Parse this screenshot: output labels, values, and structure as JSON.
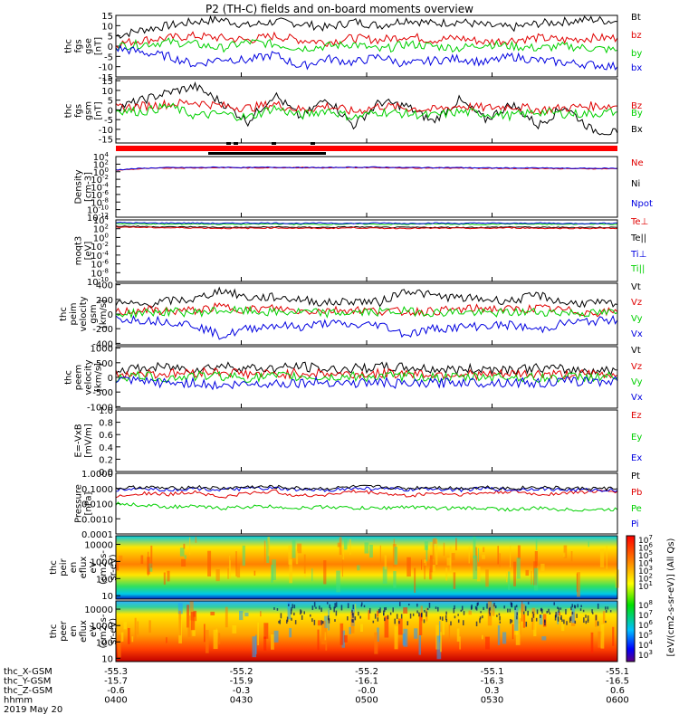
{
  "title": "P2 (TH-C) fields and on-board moments overview",
  "footer_date": "2019 May 20",
  "colors": {
    "black": "#000000",
    "red": "#e00000",
    "green": "#00d000",
    "blue": "#0000e0"
  },
  "chart_data": [
    {
      "type": "line",
      "id": "fgs-gse",
      "ylabel": [
        "thc",
        "fgs",
        "gse",
        "[nT]"
      ],
      "ylim": [
        -15,
        15
      ],
      "yticks": [
        "15",
        "10",
        "5",
        "0",
        "-5",
        "-10",
        "-15"
      ],
      "ytick_values": [
        15,
        10,
        5,
        0,
        -5,
        -10,
        -15
      ],
      "legend": [
        {
          "name": "Bt",
          "color": "black"
        },
        {
          "name": "bz",
          "color": "red"
        },
        {
          "name": "by",
          "color": "green"
        },
        {
          "name": "bx",
          "color": "blue"
        }
      ],
      "series": [
        {
          "name": "Bt",
          "color": "black",
          "values": [
            5,
            8,
            10,
            12,
            13,
            10,
            12,
            11,
            9,
            12,
            10,
            13,
            11,
            12,
            10,
            9,
            11,
            12,
            13,
            12
          ]
        },
        {
          "name": "bz",
          "color": "red",
          "values": [
            1,
            3,
            4,
            5,
            4,
            3,
            5,
            3,
            2,
            4,
            3,
            5,
            3,
            4,
            2,
            3,
            4,
            3,
            4,
            4
          ]
        },
        {
          "name": "by",
          "color": "green",
          "values": [
            0,
            1,
            2,
            1,
            -1,
            2,
            1,
            -1,
            0,
            1,
            -2,
            1,
            0,
            -1,
            1,
            0,
            -1,
            0,
            -1,
            -2
          ]
        },
        {
          "name": "bx",
          "color": "blue",
          "values": [
            -1,
            -3,
            -5,
            -9,
            -6,
            -7,
            -4,
            -10,
            -6,
            -8,
            -5,
            -9,
            -7,
            -6,
            -8,
            -5,
            -7,
            -8,
            -9,
            -10
          ]
        }
      ]
    },
    {
      "type": "line",
      "id": "fgs-gsm",
      "ylabel": [
        "thc",
        "fgs",
        "gsm",
        "[nT]"
      ],
      "ylim": [
        -17,
        16
      ],
      "yticks": [
        "15",
        "10",
        "5",
        "0",
        "-5",
        "-10",
        "-15"
      ],
      "ytick_values": [
        15,
        10,
        5,
        0,
        -5,
        -10,
        -15
      ],
      "legend": [
        {
          "name": "Bz",
          "color": "red"
        },
        {
          "name": "By",
          "color": "green"
        },
        {
          "name": "Bx",
          "color": "black"
        }
      ],
      "series": [
        {
          "name": "Bx",
          "color": "black",
          "values": [
            1,
            5,
            9,
            12,
            4,
            -6,
            8,
            -4,
            6,
            -8,
            4,
            2,
            -6,
            5,
            -5,
            3,
            -8,
            2,
            -10,
            -12
          ]
        },
        {
          "name": "Bz",
          "color": "red",
          "values": [
            1,
            2,
            3,
            4,
            2,
            1,
            3,
            0,
            2,
            -1,
            2,
            1,
            0,
            2,
            1,
            2,
            0,
            1,
            2,
            2
          ]
        },
        {
          "name": "By",
          "color": "green",
          "values": [
            0,
            -1,
            2,
            -3,
            -2,
            -4,
            1,
            -3,
            0,
            -4,
            -1,
            -2,
            -3,
            -1,
            -2,
            -3,
            -1,
            -2,
            -2,
            -1
          ]
        }
      ]
    },
    {
      "type": "line",
      "id": "density",
      "scale": "log",
      "ylabel": [
        "Density",
        "[cm-3]"
      ],
      "ylim_exp": [
        -12,
        4
      ],
      "ytick_exps": [
        4,
        2,
        0,
        -2,
        -4,
        -6,
        -8,
        -10,
        -12
      ],
      "yticks": [
        "10",
        "10",
        "10",
        "10",
        "10",
        "10",
        "10",
        "10",
        "10"
      ],
      "ytick_supers": [
        "4",
        "2",
        "0",
        "-2",
        "-4",
        "-6",
        "-8",
        "-10",
        "-12"
      ],
      "legend": [
        {
          "name": "Ne",
          "color": "red"
        },
        {
          "name": "Ni",
          "color": "black"
        },
        {
          "name": "Npot",
          "color": "blue"
        }
      ],
      "series": [
        {
          "name": "Ne",
          "color": "red",
          "values": [
            0.4,
            0.8,
            1.0,
            1.0,
            1.1,
            1.0,
            1.1,
            1.1,
            1.0,
            1.1,
            1.1,
            1.0,
            1.0,
            1.0,
            0.9,
            0.9,
            0.9,
            0.8,
            0.8,
            0.8
          ]
        },
        {
          "name": "Npot",
          "color": "blue",
          "values": [
            0.5,
            0.9,
            1.1,
            1.1,
            1.2,
            1.1,
            1.2,
            1.1,
            1.1,
            1.2,
            1.2,
            1.1,
            1.1,
            1.1,
            1.0,
            1.0,
            1.0,
            0.9,
            0.9,
            0.9
          ]
        }
      ]
    },
    {
      "type": "line",
      "id": "temperature",
      "scale": "log",
      "ylabel": [
        "moqt3",
        "[eV]"
      ],
      "ylim_exp": [
        -10,
        4
      ],
      "ytick_exps": [
        4,
        2,
        0,
        -2,
        -4,
        -6,
        -8,
        -10
      ],
      "yticks": [
        "10",
        "10",
        "10",
        "10",
        "10",
        "10",
        "10",
        "10"
      ],
      "ytick_supers": [
        "4",
        "2",
        "0",
        "-2",
        "-4",
        "-6",
        "-8",
        "-10"
      ],
      "legend": [
        {
          "name": "Te⊥",
          "color": "red"
        },
        {
          "name": "Te||",
          "color": "black"
        },
        {
          "name": "Ti⊥",
          "color": "blue"
        },
        {
          "name": "Ti||",
          "color": "green"
        }
      ],
      "series": [
        {
          "name": "Ti||",
          "color": "green",
          "values": [
            3.2,
            3.1,
            3.0,
            3.1,
            3.0,
            3.0,
            3.1,
            3.0,
            3.0,
            3.1,
            3.0,
            3.0,
            3.1,
            3.0,
            3.0,
            3.1,
            3.0,
            3.0,
            3.1,
            3.0
          ]
        },
        {
          "name": "Ti⊥",
          "color": "blue",
          "values": [
            3.4,
            3.3,
            3.3,
            3.3,
            3.2,
            3.3,
            3.3,
            3.2,
            3.3,
            3.2,
            3.3,
            3.2,
            3.3,
            3.2,
            3.3,
            3.2,
            3.3,
            3.2,
            3.2,
            3.3
          ]
        },
        {
          "name": "Te||",
          "color": "black",
          "values": [
            2.6,
            2.5,
            2.4,
            2.4,
            2.3,
            2.3,
            2.4,
            2.3,
            2.3,
            2.4,
            2.3,
            2.3,
            2.3,
            2.3,
            2.3,
            2.4,
            2.3,
            2.3,
            2.3,
            2.3
          ]
        },
        {
          "name": "Te⊥",
          "color": "red",
          "values": [
            2.4,
            2.3,
            2.2,
            2.2,
            2.1,
            2.1,
            2.2,
            2.1,
            2.1,
            2.2,
            2.1,
            2.1,
            2.1,
            2.1,
            2.1,
            2.2,
            2.1,
            2.1,
            2.1,
            2.1
          ]
        }
      ]
    },
    {
      "type": "line",
      "id": "peim-velocity",
      "ylabel": [
        "thc",
        "peim",
        "velocity",
        "gsm",
        "[km/s]"
      ],
      "ylim": [
        -420,
        420
      ],
      "yticks": [
        "400",
        "200",
        "0",
        "-200",
        "-400"
      ],
      "ytick_values": [
        400,
        200,
        0,
        -200,
        -400
      ],
      "legend": [
        {
          "name": "Vt",
          "color": "black"
        },
        {
          "name": "Vz",
          "color": "red"
        },
        {
          "name": "Vy",
          "color": "green"
        },
        {
          "name": "Vx",
          "color": "blue"
        }
      ],
      "series": [
        {
          "name": "Vt",
          "color": "black",
          "values": [
            150,
            120,
            180,
            200,
            330,
            220,
            230,
            200,
            150,
            180,
            160,
            330,
            250,
            220,
            200,
            180,
            260,
            150,
            150,
            130
          ]
        },
        {
          "name": "Vz",
          "color": "red",
          "values": [
            20,
            60,
            40,
            50,
            100,
            60,
            80,
            40,
            50,
            60,
            40,
            30,
            40,
            60,
            80,
            60,
            80,
            50,
            20,
            30
          ]
        },
        {
          "name": "Vy",
          "color": "green",
          "values": [
            0,
            20,
            30,
            20,
            50,
            40,
            20,
            30,
            10,
            20,
            30,
            40,
            20,
            30,
            10,
            20,
            30,
            20,
            10,
            20
          ]
        },
        {
          "name": "Vx",
          "color": "blue",
          "values": [
            -60,
            -80,
            -100,
            -150,
            -300,
            -200,
            -150,
            -180,
            -120,
            -160,
            -140,
            -280,
            -200,
            -180,
            -160,
            -150,
            -220,
            -120,
            -100,
            -80
          ]
        }
      ]
    },
    {
      "type": "line",
      "id": "peem-velocity",
      "ylabel": [
        "thc",
        "peem",
        "velocity",
        "[km/s]"
      ],
      "ylim": [
        -1050,
        1050
      ],
      "yticks": [
        "1000",
        "500",
        "0",
        "-500",
        "-1000"
      ],
      "ytick_values": [
        1000,
        500,
        0,
        -500,
        -1000
      ],
      "legend": [
        {
          "name": "Vt",
          "color": "black"
        },
        {
          "name": "Vz",
          "color": "red"
        },
        {
          "name": "Vy",
          "color": "green"
        },
        {
          "name": "Vx",
          "color": "blue"
        }
      ],
      "series": [
        {
          "name": "Vt",
          "color": "black",
          "values": [
            250,
            300,
            350,
            280,
            400,
            320,
            300,
            380,
            260,
            300,
            350,
            330,
            280,
            260,
            300,
            280,
            320,
            260,
            240,
            250
          ]
        },
        {
          "name": "Vz",
          "color": "red",
          "values": [
            100,
            150,
            120,
            180,
            200,
            120,
            100,
            150,
            120,
            100,
            120,
            150,
            100,
            120,
            80,
            100,
            120,
            90,
            100,
            80
          ]
        },
        {
          "name": "Vy",
          "color": "green",
          "values": [
            0,
            50,
            -30,
            40,
            60,
            -20,
            30,
            20,
            -10,
            30,
            20,
            40,
            10,
            -20,
            30,
            20,
            -30,
            10,
            20,
            10
          ]
        },
        {
          "name": "Vx",
          "color": "blue",
          "values": [
            -100,
            -150,
            -200,
            -180,
            -300,
            -220,
            -200,
            -180,
            -150,
            -200,
            -160,
            -250,
            -200,
            -150,
            -180,
            -160,
            -200,
            -150,
            -120,
            -130
          ]
        }
      ]
    },
    {
      "type": "line",
      "id": "efield",
      "ylabel": [
        "E=-VxB",
        "[mV/m]"
      ],
      "ylim": [
        0,
        1
      ],
      "yticks": [
        "1.0",
        "0.8",
        "0.6",
        "0.4",
        "0.2",
        "0.0"
      ],
      "ytick_values": [
        1.0,
        0.8,
        0.6,
        0.4,
        0.2,
        0.0
      ],
      "legend": [
        {
          "name": "Ez",
          "color": "red"
        },
        {
          "name": "Ey",
          "color": "green"
        },
        {
          "name": "Ex",
          "color": "blue"
        }
      ],
      "series": []
    },
    {
      "type": "line",
      "id": "pressure",
      "scale": "log",
      "ylabel": [
        "Pressure",
        "[nPa]"
      ],
      "ylim_exp": [
        -4,
        0
      ],
      "ytick_exps": [
        0,
        -1,
        -2,
        -3,
        -4
      ],
      "yticks": [
        "1.0000",
        "0.1000",
        "0.0100",
        "0.0010",
        "0.0001"
      ],
      "legend": [
        {
          "name": "Pt",
          "color": "black"
        },
        {
          "name": "Pb",
          "color": "red"
        },
        {
          "name": "Pe",
          "color": "green"
        },
        {
          "name": "Pi",
          "color": "blue"
        }
      ],
      "series": [
        {
          "name": "Pe",
          "color": "green",
          "values": [
            -2.0,
            -2.1,
            -2.2,
            -2.2,
            -2.3,
            -2.2,
            -2.2,
            -2.3,
            -2.2,
            -2.3,
            -2.3,
            -2.2,
            -2.3,
            -2.3,
            -2.3,
            -2.4,
            -2.3,
            -2.4,
            -2.4,
            -2.4
          ]
        },
        {
          "name": "Pb",
          "color": "red",
          "values": [
            -1.5,
            -1.3,
            -1.4,
            -1.2,
            -1.6,
            -1.3,
            -1.2,
            -1.5,
            -1.4,
            -1.2,
            -1.3,
            -1.5,
            -1.3,
            -1.4,
            -1.3,
            -1.2,
            -1.4,
            -1.3,
            -1.2,
            -1.2
          ]
        },
        {
          "name": "Pi",
          "color": "blue",
          "values": [
            -1.1,
            -1.0,
            -1.1,
            -1.0,
            -1.1,
            -1.0,
            -1.0,
            -1.1,
            -1.1,
            -1.0,
            -1.0,
            -1.1,
            -1.0,
            -1.1,
            -1.0,
            -1.1,
            -1.0,
            -1.1,
            -1.1,
            -1.1
          ]
        },
        {
          "name": "Pt",
          "color": "black",
          "values": [
            -1.0,
            -0.9,
            -1.0,
            -0.9,
            -1.0,
            -0.9,
            -0.9,
            -1.0,
            -1.0,
            -0.9,
            -0.9,
            -1.0,
            -0.9,
            -1.0,
            -0.9,
            -1.0,
            -0.9,
            -1.0,
            -1.0,
            -1.0
          ]
        }
      ]
    },
    {
      "type": "heatmap",
      "id": "peir",
      "ylabel": [
        "thc",
        "peir",
        "en",
        "eflux",
        "eV",
        "(cm2-s-",
        "sr-eV)"
      ],
      "yticks": [
        "10000",
        "1000",
        "100",
        "10"
      ],
      "ytick_exps": [
        4,
        3,
        2,
        1
      ],
      "ylim_exp": [
        0.8,
        4.5
      ]
    },
    {
      "type": "heatmap",
      "id": "peer",
      "ylabel": [
        "thc",
        "peer",
        "en",
        "eflux",
        "eV",
        "(cm2-s-",
        "sr-eV)"
      ],
      "yticks": [
        "10000",
        "1000",
        "100",
        "10"
      ],
      "ytick_exps": [
        4,
        3,
        2,
        1
      ],
      "ylim_exp": [
        0.8,
        4.5
      ]
    }
  ],
  "colorbar": {
    "label": "[eV/(cm2-s-sr-eV)] (All Qs)",
    "ticks_top": [
      "10",
      "10",
      "10",
      "10",
      "10",
      "10",
      "10"
    ],
    "supers_top": [
      "7",
      "6",
      "5",
      "4",
      "3",
      "2",
      "1"
    ],
    "ticks_bottom": [
      "10",
      "10",
      "10",
      "10",
      "10",
      "10"
    ],
    "supers_bottom": [
      "8",
      "7",
      "6",
      "5",
      "4",
      "3"
    ]
  },
  "xaxis": {
    "row_labels": [
      "thc_X-GSM",
      "thc_Y-GSM",
      "thc_Z-GSM",
      "hhmm"
    ],
    "columns": [
      [
        "-55.3",
        "-15.7",
        "-0.6",
        "0400"
      ],
      [
        "-55.2",
        "-15.9",
        "-0.3",
        "0430"
      ],
      [
        "-55.2",
        "-16.1",
        "-0.0",
        "0500"
      ],
      [
        "-55.1",
        "-16.3",
        "0.3",
        "0530"
      ],
      [
        "-55.1",
        "-16.5",
        "0.6",
        "0600"
      ]
    ]
  }
}
